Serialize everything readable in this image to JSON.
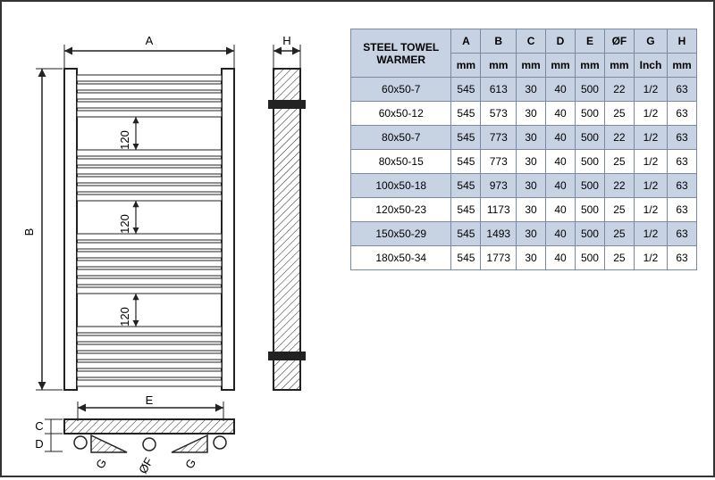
{
  "diagram": {
    "labels": {
      "A": "A",
      "B": "B",
      "C": "C",
      "D": "D",
      "E": "E",
      "OF": "ØF",
      "G": "G",
      "H": "H",
      "gap": "120"
    },
    "colors": {
      "stroke": "#222222",
      "hatch": "#222222",
      "bg": "#ffffff"
    }
  },
  "table": {
    "title_line1": "STEEL TOWEL",
    "title_line2": "WARMER",
    "columns": [
      "A",
      "B",
      "C",
      "D",
      "E",
      "ØF",
      "G",
      "H"
    ],
    "units": [
      "mm",
      "mm",
      "mm",
      "mm",
      "mm",
      "mm",
      "Inch",
      "mm"
    ],
    "rows": [
      {
        "name": "60x50-7",
        "vals": [
          "545",
          "613",
          "30",
          "40",
          "500",
          "22",
          "1/2",
          "63"
        ],
        "alt": true
      },
      {
        "name": "60x50-12",
        "vals": [
          "545",
          "573",
          "30",
          "40",
          "500",
          "25",
          "1/2",
          "63"
        ],
        "alt": false
      },
      {
        "name": "80x50-7",
        "vals": [
          "545",
          "773",
          "30",
          "40",
          "500",
          "22",
          "1/2",
          "63"
        ],
        "alt": true
      },
      {
        "name": "80x50-15",
        "vals": [
          "545",
          "773",
          "30",
          "40",
          "500",
          "25",
          "1/2",
          "63"
        ],
        "alt": false
      },
      {
        "name": "100x50-18",
        "vals": [
          "545",
          "973",
          "30",
          "40",
          "500",
          "22",
          "1/2",
          "63"
        ],
        "alt": true
      },
      {
        "name": "120x50-23",
        "vals": [
          "545",
          "1173",
          "30",
          "40",
          "500",
          "25",
          "1/2",
          "63"
        ],
        "alt": false
      },
      {
        "name": "150x50-29",
        "vals": [
          "545",
          "1493",
          "30",
          "40",
          "500",
          "25",
          "1/2",
          "63"
        ],
        "alt": true
      },
      {
        "name": "180x50-34",
        "vals": [
          "545",
          "1773",
          "30",
          "40",
          "500",
          "25",
          "1/2",
          "63"
        ],
        "alt": false
      }
    ],
    "colors": {
      "header_bg": "#c7d2e3",
      "alt_bg": "#c7d2e3",
      "border": "#7a8aa0",
      "text": "#222222"
    },
    "fontsize": 12
  }
}
